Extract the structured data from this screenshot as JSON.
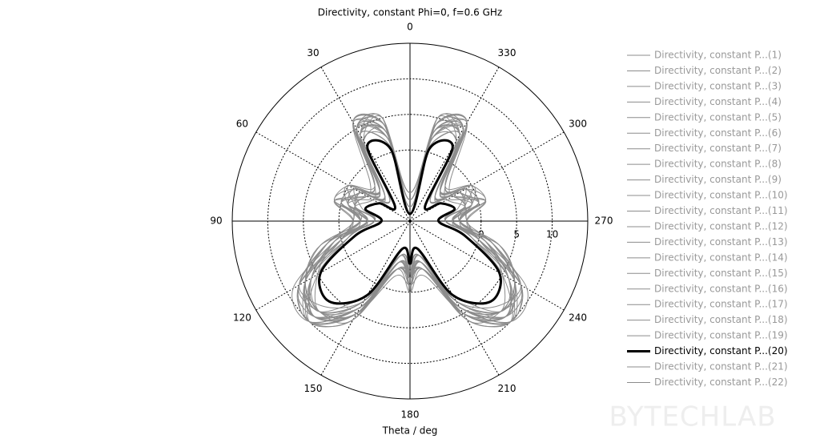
{
  "chart_data": {
    "type": "polar",
    "title": "Directivity, constant Phi=0, f=0.6 GHz",
    "theta_label": "Theta / deg",
    "watermark": "BYTECHLAB",
    "theta": [
      0,
      15,
      30,
      45,
      60,
      75,
      90,
      105,
      120,
      135,
      150,
      165,
      180,
      195,
      210,
      225,
      240,
      255,
      270,
      285,
      300,
      315,
      330,
      345
    ],
    "thetaticks": [
      0,
      30,
      60,
      90,
      120,
      150,
      180,
      210,
      240,
      270,
      300,
      330
    ],
    "rlim": [
      -10,
      15
    ],
    "rticks": [
      0,
      5,
      10
    ],
    "series": [
      {
        "name": "Directivity, constant P...(1)",
        "color": "#8c8c8c",
        "width": 1,
        "values": [
          -8,
          3,
          5,
          -5,
          -3,
          -2,
          -4,
          0,
          7,
          9,
          4,
          -4,
          -2,
          -4,
          4,
          8,
          7,
          0,
          -4,
          -2,
          -3,
          -5,
          5,
          3
        ]
      },
      {
        "name": "Directivity, constant P...(2)",
        "color": "#8c8c8c",
        "width": 1,
        "values": [
          -7,
          4,
          4,
          -4,
          -1,
          -3,
          -5,
          1,
          6,
          8,
          5,
          -5,
          -3,
          -5,
          5,
          9,
          6,
          1,
          -5,
          -3,
          -1,
          -4,
          4,
          4
        ]
      },
      {
        "name": "Directivity, constant P...(3)",
        "color": "#8c8c8c",
        "width": 1,
        "values": [
          -9,
          2,
          6,
          -3,
          -2,
          0,
          -3,
          -1,
          5,
          10,
          6,
          -3,
          -1,
          -3,
          6,
          10,
          5,
          -1,
          -3,
          0,
          -2,
          -3,
          6,
          2
        ]
      },
      {
        "name": "Directivity, constant P...(4)",
        "color": "#8c8c8c",
        "width": 1,
        "values": [
          -6,
          5,
          3,
          -6,
          0,
          -1,
          -4,
          2,
          8,
          7,
          3,
          -4,
          -2,
          -4,
          3,
          7,
          8,
          2,
          -4,
          -1,
          0,
          -6,
          3,
          5
        ]
      },
      {
        "name": "Directivity, constant P...(5)",
        "color": "#8c8c8c",
        "width": 1,
        "values": [
          -8,
          1,
          4,
          -5,
          -4,
          1,
          -2,
          0,
          6,
          9,
          5,
          -5,
          0,
          -5,
          5,
          9,
          6,
          0,
          -2,
          1,
          -4,
          -5,
          4,
          1
        ]
      },
      {
        "name": "Directivity, constant P...(6)",
        "color": "#8c8c8c",
        "width": 1,
        "values": [
          -7,
          3,
          6,
          -2,
          -3,
          -1,
          -5,
          3,
          7,
          8,
          2,
          -3,
          -3,
          -3,
          2,
          8,
          7,
          3,
          -5,
          -1,
          -3,
          -2,
          6,
          3
        ]
      },
      {
        "name": "Directivity, constant P...(7)",
        "color": "#8c8c8c",
        "width": 1,
        "values": [
          -9,
          4,
          5,
          -4,
          -1,
          0,
          -3,
          1,
          9,
          10,
          4,
          -4,
          -1,
          -4,
          4,
          10,
          9,
          1,
          -3,
          0,
          -1,
          -4,
          5,
          4
        ]
      },
      {
        "name": "Directivity, constant P...(8)",
        "color": "#8c8c8c",
        "width": 1,
        "values": [
          -8,
          2,
          3,
          -6,
          -2,
          -2,
          -4,
          -1,
          6,
          8,
          3,
          -6,
          -2,
          -6,
          3,
          8,
          6,
          -1,
          -4,
          -2,
          -2,
          -6,
          3,
          2
        ]
      },
      {
        "name": "Directivity, constant P...(9)",
        "color": "#8c8c8c",
        "width": 1,
        "values": [
          -6,
          5,
          5,
          -3,
          0,
          1,
          -2,
          2,
          7,
          9,
          5,
          -2,
          -1,
          -2,
          5,
          9,
          7,
          2,
          -2,
          1,
          0,
          -3,
          5,
          5
        ]
      },
      {
        "name": "Directivity, constant P...(10)",
        "color": "#8c8c8c",
        "width": 1,
        "values": [
          -8,
          3,
          4,
          -5,
          -3,
          -2,
          -5,
          0,
          8,
          10,
          6,
          -4,
          -2,
          -4,
          6,
          10,
          8,
          0,
          -5,
          -2,
          -3,
          -5,
          4,
          3
        ]
      },
      {
        "name": "Directivity, constant P...(11)",
        "color": "#8c8c8c",
        "width": 1,
        "values": [
          -7,
          4,
          6,
          -4,
          -1,
          0,
          -3,
          1,
          5,
          8,
          4,
          -3,
          0,
          -3,
          4,
          8,
          5,
          1,
          -3,
          0,
          -1,
          -4,
          6,
          4
        ]
      },
      {
        "name": "Directivity, constant P...(12)",
        "color": "#8c8c8c",
        "width": 1,
        "values": [
          -9,
          2,
          5,
          -5,
          -2,
          -1,
          -4,
          2,
          7,
          9,
          3,
          -5,
          -2,
          -5,
          3,
          9,
          7,
          2,
          -4,
          -1,
          -2,
          -5,
          5,
          2
        ]
      },
      {
        "name": "Directivity, constant P...(13)",
        "color": "#8c8c8c",
        "width": 1,
        "values": [
          -8,
          3,
          3,
          -3,
          -4,
          -2,
          -2,
          0,
          6,
          10,
          5,
          -4,
          -1,
          -4,
          5,
          10,
          6,
          0,
          -2,
          -2,
          -4,
          -3,
          3,
          3
        ]
      },
      {
        "name": "Directivity, constant P...(14)",
        "color": "#8c8c8c",
        "width": 1,
        "values": [
          -7,
          1,
          4,
          -6,
          -1,
          1,
          -4,
          -1,
          8,
          9,
          4,
          -3,
          -3,
          -3,
          4,
          9,
          8,
          -1,
          -4,
          1,
          -1,
          -6,
          4,
          1
        ]
      },
      {
        "name": "Directivity, constant P...(15)",
        "color": "#8c8c8c",
        "width": 1,
        "values": [
          -6,
          4,
          6,
          -4,
          -3,
          0,
          -3,
          3,
          7,
          8,
          6,
          -5,
          -2,
          -5,
          6,
          8,
          7,
          3,
          -3,
          0,
          -3,
          -4,
          6,
          4
        ]
      },
      {
        "name": "Directivity, constant P...(16)",
        "color": "#8c8c8c",
        "width": 1,
        "values": [
          -9,
          3,
          5,
          -5,
          -2,
          -1,
          -5,
          1,
          6,
          9,
          4,
          -4,
          -1,
          -4,
          4,
          9,
          6,
          1,
          -5,
          -1,
          -2,
          -5,
          5,
          3
        ]
      },
      {
        "name": "Directivity, constant P...(17)",
        "color": "#8c8c8c",
        "width": 1,
        "values": [
          -8,
          5,
          4,
          -4,
          0,
          -2,
          -3,
          2,
          8,
          10,
          5,
          -3,
          -2,
          -3,
          5,
          10,
          8,
          2,
          -3,
          -2,
          0,
          -4,
          4,
          5
        ]
      },
      {
        "name": "Directivity, constant P...(18)",
        "color": "#8c8c8c",
        "width": 1,
        "values": [
          -7,
          2,
          5,
          -3,
          -2,
          0,
          -4,
          0,
          7,
          8,
          3,
          -5,
          -1,
          -5,
          3,
          8,
          7,
          0,
          -4,
          0,
          -2,
          -3,
          5,
          2
        ]
      },
      {
        "name": "Directivity, constant P...(19)",
        "color": "#8c8c8c",
        "width": 1,
        "values": [
          -8,
          4,
          6,
          -5,
          -1,
          -1,
          -3,
          1,
          6,
          9,
          5,
          -4,
          -3,
          -4,
          5,
          9,
          6,
          1,
          -3,
          -1,
          -1,
          -5,
          6,
          4
        ]
      },
      {
        "name": "Directivity, constant P...(20)",
        "color": "#000000",
        "width": 3,
        "values": [
          -9,
          0.5,
          2,
          -7,
          -5,
          -3.5,
          -6,
          -2,
          4.5,
          6,
          2,
          -6,
          -4,
          -6,
          2,
          6,
          4.5,
          -2,
          -6,
          -3.5,
          -5,
          -7,
          2,
          0.5
        ]
      },
      {
        "name": "Directivity, constant P...(21)",
        "color": "#8c8c8c",
        "width": 1,
        "values": [
          -7,
          3,
          4,
          -4,
          -3,
          1,
          -4,
          2,
          7,
          10,
          4,
          -3,
          -2,
          -3,
          4,
          10,
          7,
          2,
          -4,
          1,
          -3,
          -4,
          4,
          3
        ]
      },
      {
        "name": "Directivity, constant P...(22)",
        "color": "#8c8c8c",
        "width": 1,
        "values": [
          -9,
          4,
          5,
          -5,
          -2,
          -2,
          -2,
          0,
          8,
          8,
          5,
          -4,
          -1,
          -4,
          5,
          8,
          8,
          0,
          -2,
          -2,
          -2,
          -5,
          5,
          4
        ]
      }
    ]
  }
}
